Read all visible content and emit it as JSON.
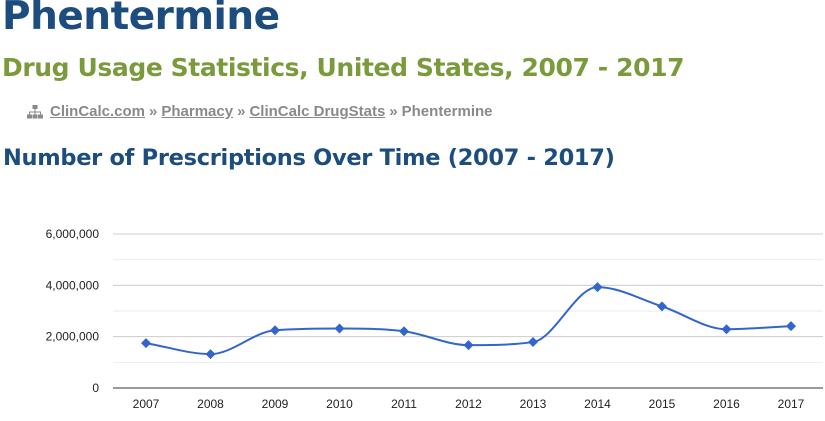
{
  "page": {
    "title": "Phentermine",
    "subtitle": "Drug Usage Statistics, United States, 2007 - 2017"
  },
  "breadcrumb": {
    "icon": "sitemap-icon",
    "items": [
      "ClinCalc.com",
      "Pharmacy",
      "ClinCalc DrugStats",
      "Phentermine"
    ],
    "separator": "»"
  },
  "section": {
    "heading": "Number of Prescriptions Over Time (2007 - 2017)"
  },
  "colors": {
    "title": "#1c4d7e",
    "subtitle": "#7a9a3c",
    "breadcrumb": "#8a8a8a",
    "series": "#3366cc"
  },
  "chart_data": {
    "type": "line",
    "title": "",
    "xlabel": "",
    "ylabel": "",
    "x": [
      "2007",
      "2008",
      "2009",
      "2010",
      "2011",
      "2012",
      "2013",
      "2014",
      "2015",
      "2016",
      "2017"
    ],
    "series": [
      {
        "values": [
          1750000,
          1320000,
          2250000,
          2320000,
          2210000,
          1670000,
          1790000,
          3930000,
          3180000,
          2290000,
          2410000
        ]
      }
    ],
    "ylim": [
      0,
      6000000
    ],
    "yticks": [
      0,
      2000000,
      4000000,
      6000000
    ],
    "ytick_labels": [
      "0",
      "2,000,000",
      "4,000,000",
      "6,000,000"
    ],
    "grid": true,
    "curve": "smooth",
    "legend": "none"
  }
}
